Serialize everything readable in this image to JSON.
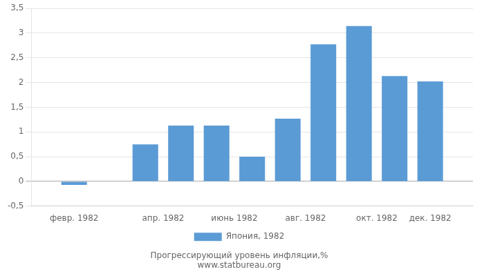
{
  "chart_data": {
    "type": "bar",
    "x": [
      1,
      3,
      4,
      5,
      6,
      7,
      8,
      9,
      10,
      11
    ],
    "series": [
      {
        "name": "Япония, 1982",
        "color": "#5b9bd5",
        "values": [
          -0.07,
          0.75,
          1.13,
          1.13,
          0.5,
          1.27,
          2.77,
          3.14,
          2.13,
          2.02
        ]
      }
    ],
    "xlim": [
      -0.2,
      12.2
    ],
    "xticks": [
      {
        "value": 1,
        "label": "февр. 1982"
      },
      {
        "value": 3.5,
        "label": "апр. 1982"
      },
      {
        "value": 5.5,
        "label": "июнь 1982"
      },
      {
        "value": 7.5,
        "label": "авг. 1982"
      },
      {
        "value": 9.5,
        "label": "окт. 1982"
      },
      {
        "value": 11,
        "label": "дек. 1982"
      }
    ],
    "ylim": [
      -0.5,
      3.5
    ],
    "yticks": [
      {
        "value": -0.5,
        "label": "-0,5"
      },
      0,
      {
        "value": 0.5,
        "label": "0,5"
      },
      1,
      {
        "value": 1.5,
        "label": "1,5"
      },
      2,
      {
        "value": 2.5,
        "label": "2,5"
      },
      3,
      {
        "value": 3.5,
        "label": "3,5"
      }
    ],
    "grid": "y",
    "legend": "bottom",
    "annotations": [
      "Прогрессирующий уровень инфляции,%",
      "www.statbureau.org"
    ]
  }
}
